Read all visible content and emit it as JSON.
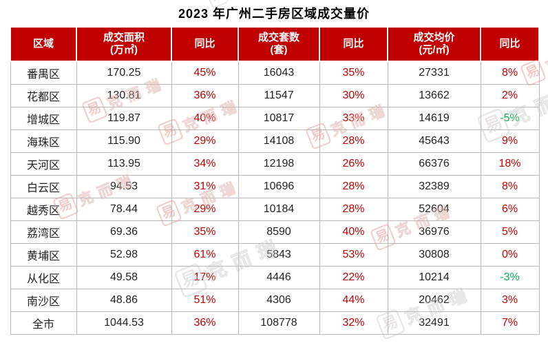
{
  "title": "2023 年广州二手房区域成交量价",
  "colors": {
    "header_bg": "#C00000",
    "positive_pct": "#C00000",
    "negative_pct": "#00B050",
    "body_text": "#1F1F1F",
    "grid_border": "#B7B7B7"
  },
  "watermark": {
    "seal_char": "易",
    "brand": "克而瑞"
  },
  "chart_data": {
    "type": "table",
    "title": "2023 年广州二手房区域成交量价",
    "columns": [
      {
        "label": "区域",
        "sub": ""
      },
      {
        "label": "成交面积",
        "sub": "(万㎡)"
      },
      {
        "label": "同比",
        "sub": ""
      },
      {
        "label": "成交套数",
        "sub": "(套)"
      },
      {
        "label": "同比",
        "sub": ""
      },
      {
        "label": "成交均价",
        "sub": "(元/㎡)"
      },
      {
        "label": "同比",
        "sub": ""
      }
    ],
    "rows": [
      [
        "番禺区",
        "170.25",
        "45%",
        "16043",
        "35%",
        "27331",
        "8%"
      ],
      [
        "花都区",
        "130.81",
        "36%",
        "11547",
        "30%",
        "13662",
        "2%"
      ],
      [
        "增城区",
        "119.87",
        "40%",
        "10817",
        "33%",
        "14619",
        "-5%"
      ],
      [
        "海珠区",
        "115.90",
        "29%",
        "14108",
        "28%",
        "45643",
        "9%"
      ],
      [
        "天河区",
        "113.95",
        "34%",
        "12198",
        "26%",
        "66376",
        "18%"
      ],
      [
        "白云区",
        "94.53",
        "31%",
        "10696",
        "28%",
        "32389",
        "8%"
      ],
      [
        "越秀区",
        "78.44",
        "29%",
        "10184",
        "28%",
        "52604",
        "6%"
      ],
      [
        "荔湾区",
        "69.36",
        "35%",
        "8590",
        "40%",
        "36976",
        "5%"
      ],
      [
        "黄埔区",
        "52.98",
        "61%",
        "5843",
        "53%",
        "30808",
        "0%"
      ],
      [
        "从化区",
        "49.58",
        "17%",
        "4446",
        "22%",
        "10214",
        "-3%"
      ],
      [
        "南沙区",
        "48.86",
        "51%",
        "4306",
        "44%",
        "20462",
        "3%"
      ],
      [
        "全市",
        "1044.53",
        "36%",
        "108778",
        "32%",
        "32491",
        "7%"
      ]
    ]
  }
}
